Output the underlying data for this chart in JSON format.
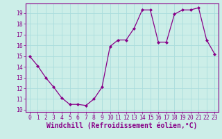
{
  "x": [
    0,
    1,
    2,
    3,
    4,
    5,
    6,
    7,
    8,
    9,
    10,
    11,
    12,
    13,
    14,
    15,
    16,
    17,
    18,
    19,
    20,
    21,
    22,
    23
  ],
  "y": [
    15.0,
    14.1,
    13.0,
    12.1,
    11.1,
    10.5,
    10.5,
    10.4,
    11.0,
    12.1,
    15.9,
    16.5,
    16.5,
    17.6,
    19.3,
    19.3,
    16.3,
    16.3,
    18.9,
    19.3,
    19.3,
    19.5,
    16.5,
    15.2
  ],
  "line_color": "#880088",
  "marker": "D",
  "marker_size": 2.0,
  "bg_color": "#cceee8",
  "grid_color": "#aadddd",
  "xlabel": "Windchill (Refroidissement éolien,°C)",
  "xlabel_color": "#880088",
  "tick_color": "#880088",
  "spine_color": "#880088",
  "ylim": [
    9.8,
    19.9
  ],
  "xlim": [
    -0.5,
    23.5
  ],
  "yticks": [
    10,
    11,
    12,
    13,
    14,
    15,
    16,
    17,
    18,
    19
  ],
  "xticks": [
    0,
    1,
    2,
    3,
    4,
    5,
    6,
    7,
    8,
    9,
    10,
    11,
    12,
    13,
    14,
    15,
    16,
    17,
    18,
    19,
    20,
    21,
    22,
    23
  ],
  "tick_fontsize": 5.8,
  "xlabel_fontsize": 7.0,
  "linewidth": 0.9
}
